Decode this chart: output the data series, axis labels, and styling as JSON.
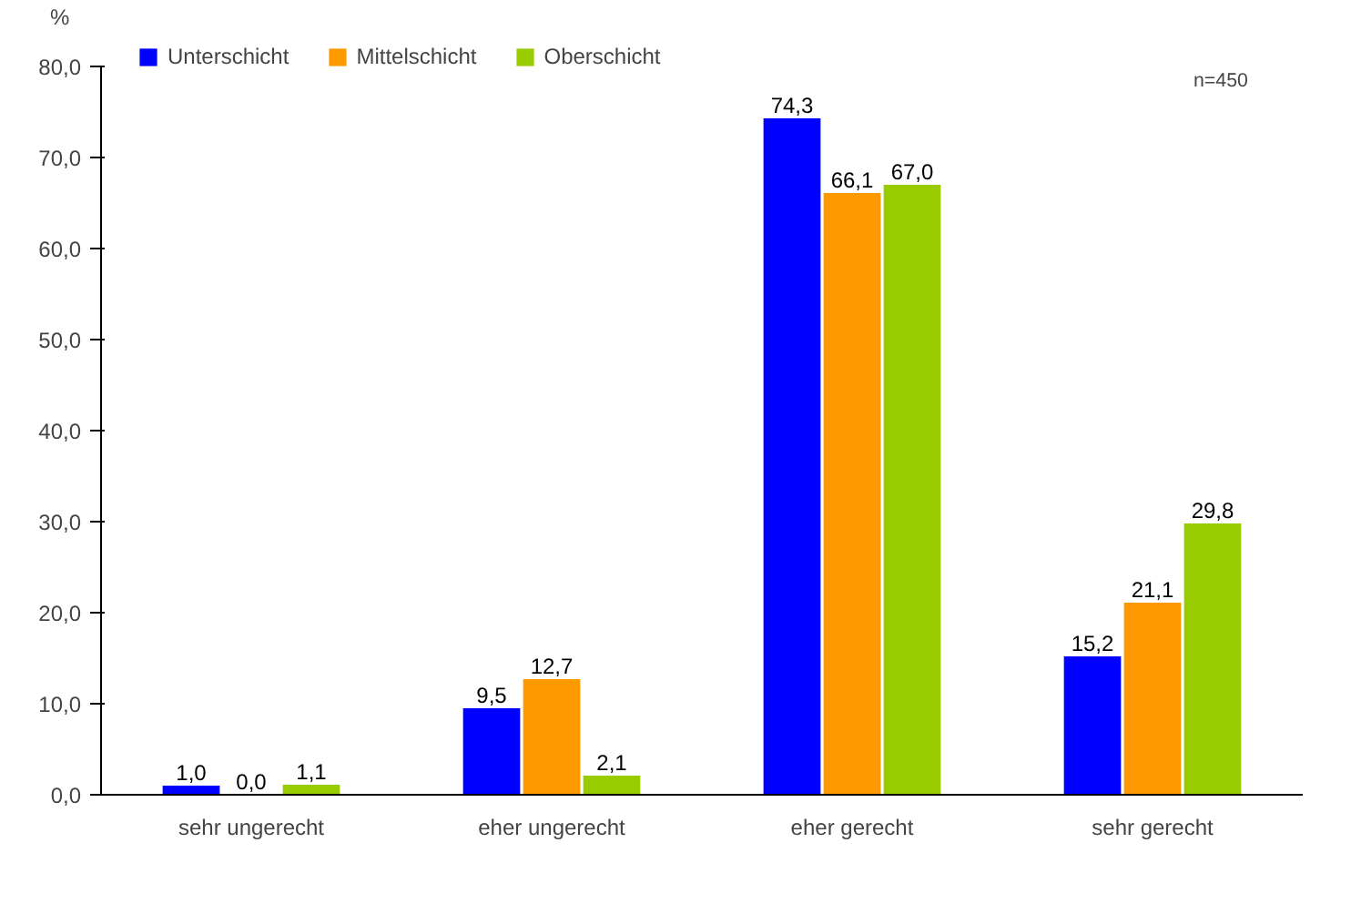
{
  "chart_data": {
    "type": "bar",
    "ylabel": "%",
    "annotations": [
      "n=450"
    ],
    "categories": [
      "sehr ungerecht",
      "eher ungerecht",
      "eher gerecht",
      "sehr gerecht"
    ],
    "series": [
      {
        "name": "Unterschicht",
        "color": "#0000ff",
        "values": [
          1.0,
          9.5,
          74.3,
          15.2
        ],
        "value_labels": [
          "1,0",
          "9,5",
          "74,3",
          "15,2"
        ]
      },
      {
        "name": "Mittelschicht",
        "color": "#ff9900",
        "values": [
          0.0,
          12.7,
          66.1,
          21.1
        ],
        "value_labels": [
          "0,0",
          "12,7",
          "66,1",
          "21,1"
        ]
      },
      {
        "name": "Oberschicht",
        "color": "#99cc00",
        "values": [
          1.1,
          2.1,
          67.0,
          29.8
        ],
        "value_labels": [
          "1,1",
          "2,1",
          "67,0",
          "29,8"
        ]
      }
    ],
    "ylim": [
      0,
      80
    ],
    "yticks": [
      {
        "value": 0,
        "label": "0,0"
      },
      {
        "value": 10,
        "label": "10,0"
      },
      {
        "value": 20,
        "label": "20,0"
      },
      {
        "value": 30,
        "label": "30,0"
      },
      {
        "value": 40,
        "label": "40,0"
      },
      {
        "value": 50,
        "label": "50,0"
      },
      {
        "value": 60,
        "label": "60,0"
      },
      {
        "value": 70,
        "label": "70,0"
      },
      {
        "value": 80,
        "label": "80,0"
      }
    ],
    "grid": false,
    "legend": "top"
  }
}
